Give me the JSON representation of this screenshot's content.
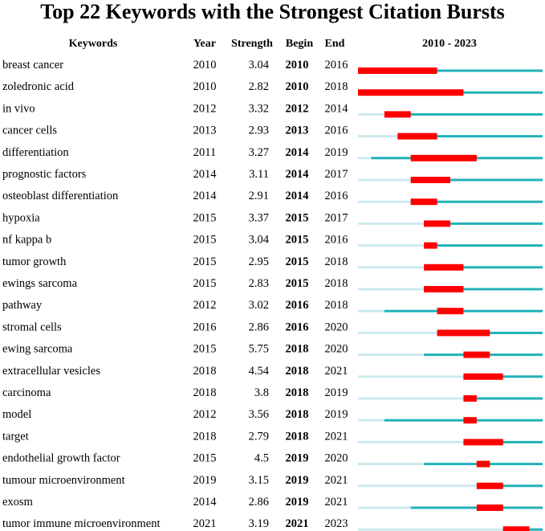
{
  "title": "Top 22 Keywords with the Strongest Citation Bursts",
  "columns": {
    "keywords": "Keywords",
    "year": "Year",
    "strength": "Strength",
    "begin": "Begin",
    "end": "End",
    "timeline": "2010 - 2023"
  },
  "colors": {
    "burst": "#ff0000",
    "active": "#20b2b8",
    "inactive": "#cde9ee"
  },
  "chart_data": {
    "type": "table",
    "range": [
      2010,
      2023
    ],
    "rows": [
      {
        "keyword": "breast cancer",
        "year": 2010,
        "strength": "3.04",
        "begin": 2010,
        "end": 2016
      },
      {
        "keyword": "zoledronic acid",
        "year": 2010,
        "strength": "2.82",
        "begin": 2010,
        "end": 2018
      },
      {
        "keyword": "in vivo",
        "year": 2012,
        "strength": "3.32",
        "begin": 2012,
        "end": 2014
      },
      {
        "keyword": "cancer cells",
        "year": 2013,
        "strength": "2.93",
        "begin": 2013,
        "end": 2016
      },
      {
        "keyword": "differentiation",
        "year": 2011,
        "strength": "3.27",
        "begin": 2014,
        "end": 2019
      },
      {
        "keyword": "prognostic factors",
        "year": 2014,
        "strength": "3.11",
        "begin": 2014,
        "end": 2017
      },
      {
        "keyword": "osteoblast differentiation",
        "year": 2014,
        "strength": "2.91",
        "begin": 2014,
        "end": 2016
      },
      {
        "keyword": "hypoxia",
        "year": 2015,
        "strength": "3.37",
        "begin": 2015,
        "end": 2017
      },
      {
        "keyword": "nf kappa b",
        "year": 2015,
        "strength": "3.04",
        "begin": 2015,
        "end": 2016
      },
      {
        "keyword": "tumor growth",
        "year": 2015,
        "strength": "2.95",
        "begin": 2015,
        "end": 2018
      },
      {
        "keyword": "ewings sarcoma",
        "year": 2015,
        "strength": "2.83",
        "begin": 2015,
        "end": 2018
      },
      {
        "keyword": "pathway",
        "year": 2012,
        "strength": "3.02",
        "begin": 2016,
        "end": 2018
      },
      {
        "keyword": "stromal cells",
        "year": 2016,
        "strength": "2.86",
        "begin": 2016,
        "end": 2020
      },
      {
        "keyword": "ewing sarcoma",
        "year": 2015,
        "strength": "5.75",
        "begin": 2018,
        "end": 2020
      },
      {
        "keyword": "extracellular vesicles",
        "year": 2018,
        "strength": "4.54",
        "begin": 2018,
        "end": 2021
      },
      {
        "keyword": "carcinoma",
        "year": 2018,
        "strength": "3.8",
        "begin": 2018,
        "end": 2019
      },
      {
        "keyword": "model",
        "year": 2012,
        "strength": "3.56",
        "begin": 2018,
        "end": 2019
      },
      {
        "keyword": "target",
        "year": 2018,
        "strength": "2.79",
        "begin": 2018,
        "end": 2021
      },
      {
        "keyword": "endothelial growth factor",
        "year": 2015,
        "strength": "4.5",
        "begin": 2019,
        "end": 2020
      },
      {
        "keyword": "tumour microenvironment",
        "year": 2019,
        "strength": "3.15",
        "begin": 2019,
        "end": 2021
      },
      {
        "keyword": "exosm",
        "year": 2014,
        "strength": "2.86",
        "begin": 2019,
        "end": 2021
      },
      {
        "keyword": "tumor immune microenvironment",
        "year": 2021,
        "strength": "3.19",
        "begin": 2021,
        "end": 2023
      }
    ]
  }
}
